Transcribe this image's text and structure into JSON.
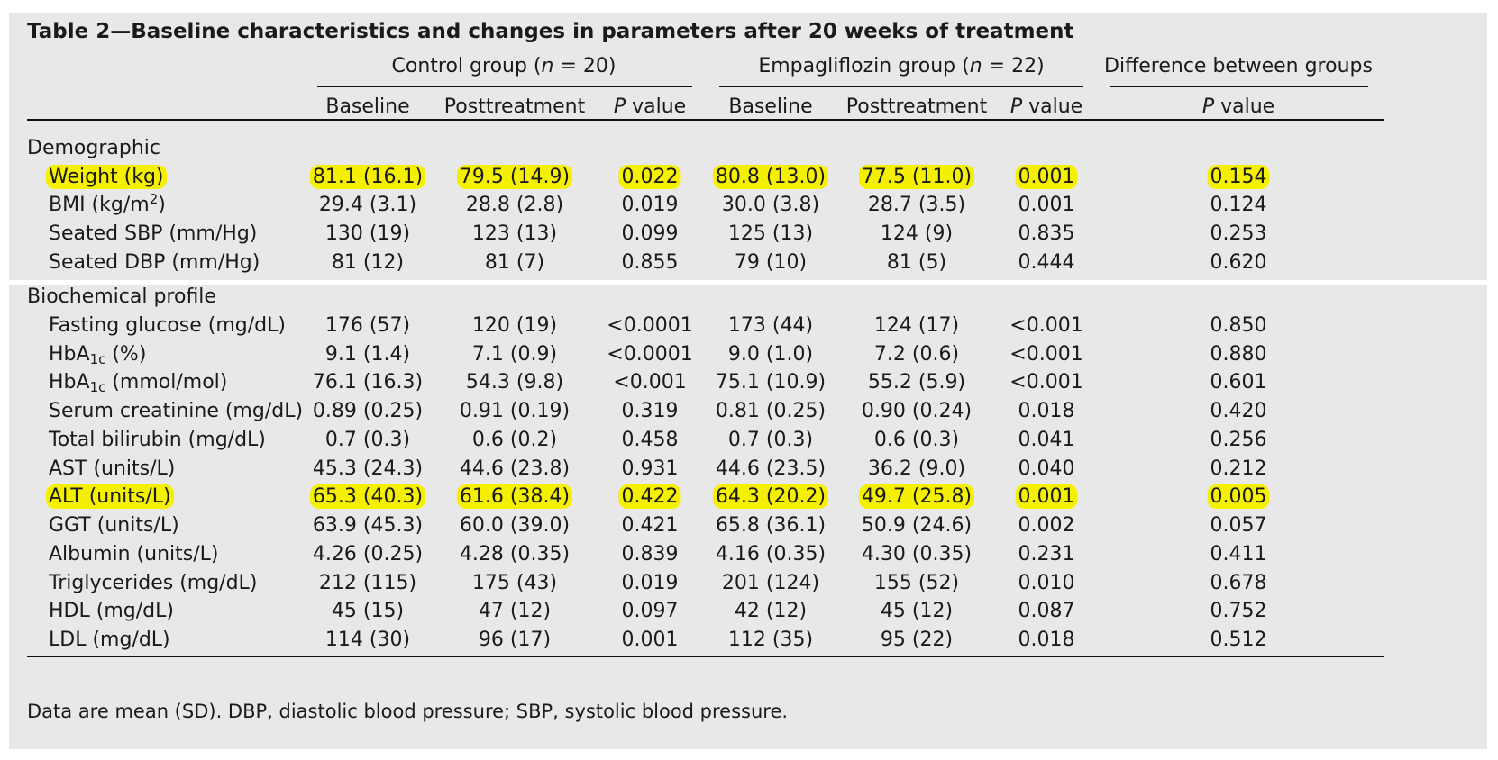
{
  "title": "Table 2—Baseline characteristics and changes in parameters after 20 weeks of treatment",
  "groups": {
    "control": {
      "prefix": "Control group (",
      "n": "n",
      "suffix": " = 20)"
    },
    "empa": {
      "prefix": "Empagliflozin group (",
      "n": "n",
      "suffix": " = 22)"
    },
    "diff": "Difference between groups"
  },
  "columns": {
    "baseline": "Baseline",
    "post": "Posttreatment",
    "p_italic": "P",
    "p_rest": " value"
  },
  "sections": {
    "demographic": "Demographic",
    "biochemical": "Biochemical profile"
  },
  "rows": [
    {
      "label": "Weight (kg)",
      "cells": [
        "81.1 (16.1)",
        "79.5 (14.9)",
        "0.022",
        "80.8 (13.0)",
        "77.5 (11.0)",
        "0.001",
        "0.154"
      ],
      "highlighted": true
    },
    {
      "label_main": "BMI (kg/m",
      "label_sup": "2",
      "label_end": ")",
      "cells": [
        "29.4 (3.1)",
        "28.8 (2.8)",
        "0.019",
        "30.0 (3.8)",
        "28.7 (3.5)",
        "0.001",
        "0.124"
      ]
    },
    {
      "label": "Seated SBP (mm/Hg)",
      "cells": [
        "130 (19)",
        "123 (13)",
        "0.099",
        "125 (13)",
        "124 (9)",
        "0.835",
        "0.253"
      ]
    },
    {
      "label": "Seated DBP (mm/Hg)",
      "cells": [
        "81 (12)",
        "81 (7)",
        "0.855",
        "79 (10)",
        "81 (5)",
        "0.444",
        "0.620"
      ]
    },
    {
      "label": "Fasting glucose (mg/dL)",
      "cells": [
        "176 (57)",
        "120 (19)",
        "<0.0001",
        "173 (44)",
        "124 (17)",
        "<0.001",
        "0.850"
      ]
    },
    {
      "label_main": "HbA",
      "label_sub": "1c",
      "label_end": " (%)",
      "cells": [
        "9.1 (1.4)",
        "7.1 (0.9)",
        "<0.0001",
        "9.0 (1.0)",
        "7.2 (0.6)",
        "<0.001",
        "0.880"
      ]
    },
    {
      "label_main": "HbA",
      "label_sub": "1c",
      "label_end": " (mmol/mol)",
      "cells": [
        "76.1 (16.3)",
        "54.3 (9.8)",
        "<0.001",
        "75.1 (10.9)",
        "55.2 (5.9)",
        "<0.001",
        "0.601"
      ]
    },
    {
      "label": "Serum creatinine (mg/dL)",
      "cells": [
        "0.89 (0.25)",
        "0.91 (0.19)",
        "0.319",
        "0.81 (0.25)",
        "0.90 (0.24)",
        "0.018",
        "0.420"
      ]
    },
    {
      "label": "Total bilirubin (mg/dL)",
      "cells": [
        "0.7 (0.3)",
        "0.6 (0.2)",
        "0.458",
        "0.7 (0.3)",
        "0.6 (0.3)",
        "0.041",
        "0.256"
      ]
    },
    {
      "label": "AST (units/L)",
      "cells": [
        "45.3 (24.3)",
        "44.6 (23.8)",
        "0.931",
        "44.6 (23.5)",
        "36.2 (9.0)",
        "0.040",
        "0.212"
      ]
    },
    {
      "label": "ALT (units/L)",
      "cells": [
        "65.3 (40.3)",
        "61.6 (38.4)",
        "0.422",
        "64.3 (20.2)",
        "49.7 (25.8)",
        "0.001",
        "0.005"
      ],
      "highlighted": true
    },
    {
      "label": "GGT (units/L)",
      "cells": [
        "63.9 (45.3)",
        "60.0 (39.0)",
        "0.421",
        "65.8 (36.1)",
        "50.9 (24.6)",
        "0.002",
        "0.057"
      ]
    },
    {
      "label": "Albumin (units/L)",
      "cells": [
        "4.26 (0.25)",
        "4.28 (0.35)",
        "0.839",
        "4.16 (0.35)",
        "4.30 (0.35)",
        "0.231",
        "0.411"
      ]
    },
    {
      "label": "Triglycerides (mg/dL)",
      "cells": [
        "212 (115)",
        "175 (43)",
        "0.019",
        "201 (124)",
        "155 (52)",
        "0.010",
        "0.678"
      ]
    },
    {
      "label": "HDL (mg/dL)",
      "cells": [
        "45 (15)",
        "47 (12)",
        "0.097",
        "42 (12)",
        "45 (12)",
        "0.087",
        "0.752"
      ]
    },
    {
      "label": "LDL (mg/dL)",
      "cells": [
        "114 (30)",
        "96 (17)",
        "0.001",
        "112 (35)",
        "95 (22)",
        "0.018",
        "0.512"
      ]
    }
  ],
  "note": "Data are mean (SD). DBP, diastolic blood pressure; SBP, systolic blood pressure.",
  "colors": {
    "highlight": "#f5f000",
    "panel": "#e8e8e8",
    "rule": "#111111"
  }
}
